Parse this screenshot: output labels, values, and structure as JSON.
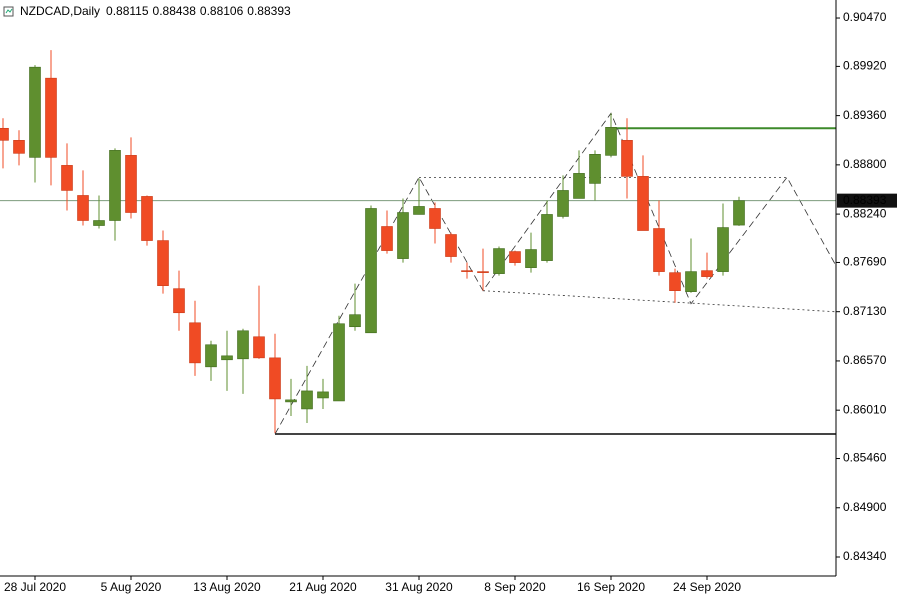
{
  "chart_data": {
    "type": "candlestick",
    "title": "NZDCAD,Daily",
    "categories": [
      null,
      null,
      "28 Jul 2020",
      null,
      null,
      null,
      null,
      null,
      "5 Aug 2020",
      null,
      null,
      null,
      null,
      null,
      "13 Aug 2020",
      null,
      null,
      null,
      null,
      null,
      "21 Aug 2020",
      null,
      null,
      null,
      null,
      null,
      "31 Aug 2020",
      null,
      null,
      null,
      null,
      null,
      "8 Sep 2020",
      null,
      null,
      null,
      null,
      null,
      "16 Sep 2020",
      null,
      null,
      null,
      null,
      null,
      "24 Sep 2020",
      null,
      null
    ],
    "open": [
      0.89216,
      0.89079,
      0.88885,
      0.89786,
      0.88794,
      0.88452,
      0.8811,
      0.88167,
      0.88908,
      0.88441,
      0.87939,
      0.87392,
      0.87004,
      0.86503,
      0.86583,
      0.86594,
      0.86845,
      0.86605,
      0.86104,
      0.86024,
      0.86149,
      0.86115,
      0.86959,
      0.8689,
      0.88099,
      0.87734,
      0.88236,
      0.88304,
      0.88008,
      0.87597,
      0.87586,
      0.87563,
      0.87814,
      0.87631,
      0.87711,
      0.88213,
      0.88418,
      0.88589,
      0.88908,
      0.89079,
      0.88669,
      0.88076,
      0.87574,
      0.87358,
      0.87597,
      0.87586,
      0.88115
    ],
    "high": [
      0.8933,
      0.89193,
      0.89934,
      0.90105,
      0.89045,
      0.88737,
      0.88452,
      0.88988,
      0.89113,
      0.88452,
      0.88053,
      0.87597,
      0.87255,
      0.86799,
      0.86913,
      0.86936,
      0.87426,
      0.86879,
      0.86366,
      0.86514,
      0.86366,
      0.87084,
      0.87449,
      0.88338,
      0.88281,
      0.88418,
      0.88646,
      0.88372,
      0.8803,
      0.87688,
      0.87848,
      0.87871,
      0.87825,
      0.8803,
      0.88395,
      0.8868,
      0.88965,
      0.88965,
      0.89387,
      0.8933,
      0.88908,
      0.88395,
      0.8762,
      0.87962,
      0.87802,
      0.88361,
      0.88438
    ],
    "low": [
      0.8876,
      0.88794,
      0.886,
      0.88566,
      0.88281,
      0.8811,
      0.88076,
      0.87939,
      0.8819,
      0.87882,
      0.87335,
      0.86913,
      0.864,
      0.86343,
      0.86229,
      0.86195,
      0.86594,
      0.8575,
      0.85944,
      0.85864,
      0.86024,
      0.86115,
      0.86913,
      0.8689,
      0.87791,
      0.87688,
      0.88236,
      0.87905,
      0.87688,
      0.87506,
      0.87369,
      0.8754,
      0.87654,
      0.87574,
      0.87688,
      0.8819,
      0.88418,
      0.88395,
      0.88885,
      0.88418,
      0.88053,
      0.8754,
      0.87232,
      0.87346,
      0.87506,
      0.8754,
      0.88106
    ],
    "close": [
      0.89079,
      0.88931,
      0.89911,
      0.88885,
      0.88509,
      0.88167,
      0.88167,
      0.88965,
      0.88258,
      0.87939,
      0.87426,
      0.87118,
      0.86548,
      0.86754,
      0.86628,
      0.86913,
      0.86605,
      0.86138,
      0.86127,
      0.86229,
      0.86218,
      0.86993,
      0.87096,
      0.88304,
      0.87825,
      0.88258,
      0.88327,
      0.88076,
      0.87757,
      0.87586,
      0.87574,
      0.87848,
      0.87688,
      0.87837,
      0.88236,
      0.88509,
      0.88703,
      0.8892,
      0.89227,
      0.88669,
      0.88053,
      0.87586,
      0.87369,
      0.87586,
      0.87529,
      0.88087,
      0.88393
    ],
    "up_color": "#5f8f2f",
    "down_color": "#f04b24",
    "xlim": [
      -0.1875,
      52.0625
    ],
    "ylim": [
      0.84124,
      0.90675
    ],
    "yticks": [
      {
        "value": 0.9047,
        "label": "0.90470"
      },
      {
        "value": 0.8992,
        "label": "0.89920"
      },
      {
        "value": 0.8936,
        "label": "0.89360"
      },
      {
        "value": 0.888,
        "label": "0.88800"
      },
      {
        "value": 0.8824,
        "label": "0.88240"
      },
      {
        "value": 0.8769,
        "label": "0.87690"
      },
      {
        "value": 0.8713,
        "label": "0.87130"
      },
      {
        "value": 0.8657,
        "label": "0.86570"
      },
      {
        "value": 0.8601,
        "label": "0.86010"
      },
      {
        "value": 0.8546,
        "label": "0.85460"
      },
      {
        "value": 0.849,
        "label": "0.84900"
      },
      {
        "value": 0.8434,
        "label": "0.84340"
      }
    ],
    "levels": [
      {
        "x": 38,
        "y": 0.89216,
        "color": "#3d8a2a"
      },
      {
        "x": 17,
        "y": 0.85739,
        "color": "#444444"
      }
    ],
    "trendlines": [
      {
        "x": [
          17,
          26,
          30,
          38,
          43,
          49,
          52.06
        ],
        "y": [
          0.85739,
          0.88658,
          0.87369,
          0.89387,
          0.87221,
          0.88658,
          0.87654
        ],
        "style": "dashed"
      },
      {
        "x": [
          26,
          49
        ],
        "y": [
          0.88658,
          0.88658
        ],
        "style": "dotted"
      },
      {
        "x": [
          30,
          52.06
        ],
        "y": [
          0.87369,
          0.87129
        ],
        "style": "dotted"
      }
    ]
  }
}
